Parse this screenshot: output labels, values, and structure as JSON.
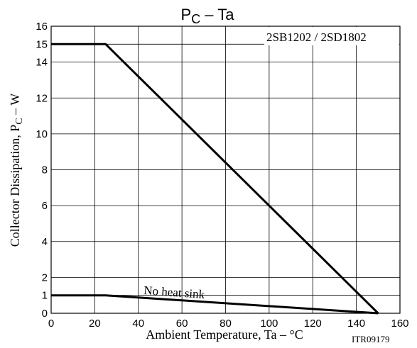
{
  "chart_data": {
    "type": "line",
    "title": {
      "main": "P",
      "sub": "C",
      "rest": " – Ta"
    },
    "xlabel": "Ambient Temperature, Ta  –  °C",
    "ylabel": {
      "main": "Collector Dissipation, P",
      "sub": "C",
      "rest": "  –  W"
    },
    "xlim": [
      0,
      160
    ],
    "ylim": [
      0,
      16
    ],
    "x_ticks": [
      0,
      20,
      40,
      60,
      80,
      100,
      120,
      140,
      160
    ],
    "y_ticks": [
      0,
      1,
      2,
      4,
      6,
      8,
      10,
      12,
      14,
      15,
      16
    ],
    "grid": true,
    "series": [
      {
        "x": [
          0,
          25,
          150
        ],
        "y": [
          15,
          15,
          0
        ]
      },
      {
        "x": [
          0,
          25,
          150
        ],
        "y": [
          1,
          1,
          0
        ]
      }
    ],
    "annotations": {
      "part_numbers": "2SB1202 / 2SD1802",
      "no_heat_sink": "No heat sink",
      "figure_code": "ITR09179"
    },
    "colors": {
      "line": "#000000",
      "grid": "#000000",
      "background": "#ffffff"
    }
  }
}
